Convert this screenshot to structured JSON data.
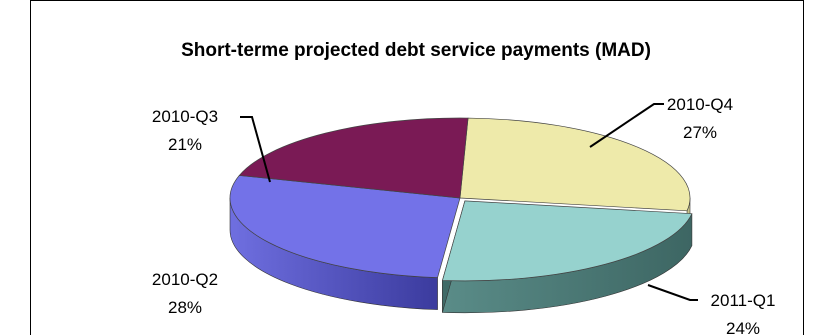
{
  "chart_data": {
    "type": "pie",
    "title": "Short-terme projected debt service payments (MAD)",
    "slices": [
      {
        "label": "2010-Q4",
        "value": 27,
        "pct_label": "27%",
        "color": "#EEEAAA"
      },
      {
        "label": "2011-Q1",
        "value": 24,
        "pct_label": "24%",
        "color": "#96D2CE"
      },
      {
        "label": "2010-Q2",
        "value": 28,
        "pct_label": "28%",
        "color": "#7372E8"
      },
      {
        "label": "2010-Q3",
        "value": 21,
        "pct_label": "21%",
        "color": "#7A1A55"
      }
    ],
    "three_d": true,
    "legend": "none"
  }
}
